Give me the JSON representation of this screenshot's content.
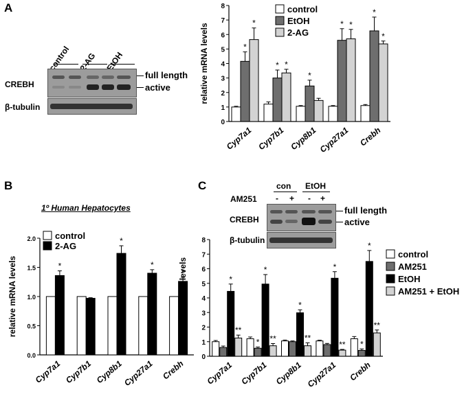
{
  "panels": {
    "A": {
      "letter": "A",
      "blot": {
        "lanes": [
          "control",
          "2-AG",
          "EtOH"
        ],
        "rows": [
          "CREBH",
          "β-tubulin"
        ],
        "band_labels": [
          "full length",
          "active"
        ]
      },
      "chart_data": {
        "type": "bar",
        "categories": [
          "Cyp7a1",
          "Cyp7b1",
          "Cyp8b1",
          "Cyp27a1",
          "Crebh"
        ],
        "series": [
          {
            "name": "control",
            "values": [
              1.0,
              1.2,
              1.05,
              1.05,
              1.1
            ],
            "errors": [
              0.05,
              0.15,
              0.05,
              0.05,
              0.07
            ],
            "color": "#ffffff"
          },
          {
            "name": "EtOH",
            "values": [
              4.15,
              3.0,
              2.45,
              5.6,
              6.25
            ],
            "errors": [
              0.65,
              0.55,
              0.4,
              0.8,
              0.95
            ],
            "color": "#6e6e6e"
          },
          {
            "name": "2-AG",
            "values": [
              5.65,
              3.35,
              1.45,
              5.7,
              5.35
            ],
            "errors": [
              0.8,
              0.25,
              0.15,
              0.65,
              0.2
            ],
            "color": "#d3d3d3"
          }
        ],
        "significance": [
          [
            "",
            "*",
            "*"
          ],
          [
            "",
            "*",
            "*"
          ],
          [
            "",
            "*",
            ""
          ],
          [
            "",
            "*",
            "*"
          ],
          [
            "",
            "*",
            "*"
          ]
        ],
        "ylabel": "relative mRNA levels",
        "ylim": [
          0,
          8
        ],
        "yticks": [
          "0",
          "1",
          "2",
          "3",
          "4",
          "5",
          "6",
          "7",
          "8"
        ],
        "grid": false,
        "legend_position": "top-right"
      }
    },
    "B": {
      "letter": "B",
      "subtitle": "1º Human Hepatocytes",
      "chart_data": {
        "type": "bar",
        "categories": [
          "Cyp7a1",
          "Cyp7b1",
          "Cyp8b1",
          "Cyp27a1",
          "Crebh"
        ],
        "series": [
          {
            "name": "control",
            "values": [
              1.0,
              1.0,
              1.0,
              1.0,
              1.0
            ],
            "errors": [
              0,
              0,
              0,
              0,
              0
            ],
            "color": "#ffffff"
          },
          {
            "name": "2-AG",
            "values": [
              1.36,
              0.97,
              1.74,
              1.4,
              1.26
            ],
            "errors": [
              0.08,
              0.01,
              0.13,
              0.06,
              0.07
            ],
            "color": "#000000"
          }
        ],
        "significance": [
          [
            "",
            "*"
          ],
          [
            "",
            ""
          ],
          [
            "",
            "*"
          ],
          [
            "",
            "*"
          ],
          [
            "",
            "*"
          ]
        ],
        "ylabel": "relative mRNA levels",
        "ylim": [
          0,
          2.0
        ],
        "yticks": [
          "0.0",
          "0.5",
          "1.0",
          "1.5",
          "2.0"
        ],
        "grid": false,
        "legend_position": "top-left"
      }
    },
    "C": {
      "letter": "C",
      "blot": {
        "groups": [
          "con",
          "EtOH"
        ],
        "treatment": "AM251",
        "signs": [
          "-",
          "+",
          "-",
          "+"
        ],
        "rows": [
          "CREBH",
          "β-tubulin"
        ],
        "band_labels": [
          "full length",
          "active"
        ]
      },
      "chart_data": {
        "type": "bar",
        "categories": [
          "Cyp7a1",
          "Cyp7b1",
          "Cyp8b1",
          "Cyp27a1",
          "Crebh"
        ],
        "series": [
          {
            "name": "control",
            "values": [
              1.0,
              1.2,
              1.05,
              1.05,
              1.2
            ],
            "errors": [
              0.08,
              0.12,
              0.06,
              0.05,
              0.15
            ],
            "color": "#ffffff"
          },
          {
            "name": "AM251",
            "values": [
              0.6,
              0.55,
              1.0,
              0.8,
              0.4
            ],
            "errors": [
              0.1,
              0.08,
              0.05,
              0.08,
              0.1
            ],
            "color": "#6e6e6e"
          },
          {
            "name": "EtOH",
            "values": [
              4.45,
              4.95,
              2.98,
              5.35,
              6.5
            ],
            "errors": [
              0.5,
              0.65,
              0.2,
              0.45,
              0.75
            ],
            "color": "#000000"
          },
          {
            "name": "AM251 + EtOH",
            "values": [
              1.25,
              0.72,
              0.72,
              0.42,
              1.6
            ],
            "errors": [
              0.2,
              0.15,
              0.2,
              0.05,
              0.2
            ],
            "color": "#d3d3d3"
          }
        ],
        "significance": [
          [
            "",
            "",
            "*",
            "**"
          ],
          [
            "",
            "*",
            "*",
            "**"
          ],
          [
            "",
            "",
            "*",
            "**"
          ],
          [
            "",
            "",
            "*",
            "**"
          ],
          [
            "",
            "*",
            "*",
            "**"
          ]
        ],
        "ylabel": "relative mRNA levels",
        "ylim": [
          0,
          8
        ],
        "yticks": [
          "0",
          "1",
          "2",
          "3",
          "4",
          "5",
          "6",
          "7",
          "8"
        ],
        "grid": false,
        "legend_position": "right"
      }
    }
  }
}
